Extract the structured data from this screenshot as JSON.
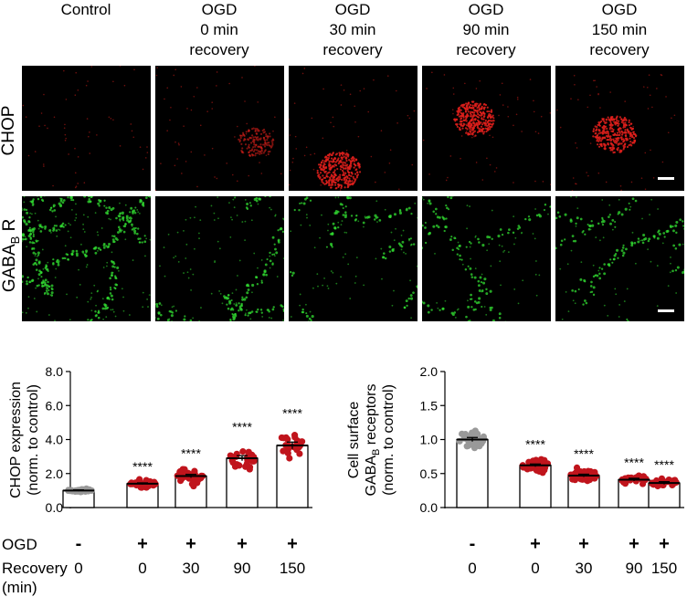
{
  "figure": {
    "column_headers": [
      [
        "Control"
      ],
      [
        "OGD",
        "0 min",
        "recovery"
      ],
      [
        "OGD",
        "30 min",
        "recovery"
      ],
      [
        "OGD",
        "90 min",
        "recovery"
      ],
      [
        "OGD",
        "150 min",
        "recovery"
      ]
    ],
    "row_labels": {
      "chop": "CHOP",
      "gaba_main": "GABA",
      "gaba_sub": "B",
      "gaba_suffix": " R"
    },
    "colors": {
      "chop": "#e0201c",
      "gaba": "#32dc32",
      "panel_bg": "#000000",
      "dot_ogd": "#c0141c",
      "dot_control": "#999999"
    }
  },
  "chart_data": [
    {
      "type": "bar",
      "ylabel_line1": "CHOP expression",
      "ylabel_line2": "(norm. to control)",
      "ylim": [
        0,
        8
      ],
      "yticks": [
        "0.0",
        "2.0",
        "4.0",
        "6.0",
        "8.0"
      ],
      "ogd_label": "OGD",
      "recovery_label": "Recovery",
      "recovery_unit": "(min)",
      "ogd": [
        "-",
        "+",
        "+",
        "+",
        "+"
      ],
      "recovery": [
        "0",
        "0",
        "30",
        "90",
        "150"
      ],
      "values": [
        1.0,
        1.4,
        1.85,
        2.9,
        3.65
      ],
      "sem": [
        0.04,
        0.05,
        0.1,
        0.15,
        0.2
      ],
      "significance": [
        "",
        "****",
        "****",
        "****",
        "****"
      ],
      "n_points": [
        30,
        45,
        38,
        26,
        24
      ],
      "spread": [
        0.12,
        0.3,
        0.6,
        1.0,
        1.05
      ]
    },
    {
      "type": "bar",
      "ylabel_line1": "Cell surface",
      "ylabel_line2_main": "GABA",
      "ylabel_line2_sub": "B",
      "ylabel_line2_suffix": " receptors",
      "ylabel_line3": "(norm. to control)",
      "ylim": [
        0,
        2
      ],
      "yticks": [
        "0.0",
        "0.5",
        "1.0",
        "1.5",
        "2.0"
      ],
      "recovery": [
        "0",
        "0",
        "30",
        "90",
        "150"
      ],
      "ogd": [
        "-",
        "+",
        "+",
        "+",
        "+"
      ],
      "values": [
        1.0,
        0.62,
        0.47,
        0.41,
        0.36
      ],
      "sem": [
        0.03,
        0.02,
        0.02,
        0.02,
        0.02
      ],
      "significance": [
        "",
        "****",
        "****",
        "****",
        "****"
      ],
      "n_points": [
        36,
        40,
        40,
        28,
        26
      ],
      "spread": [
        0.2,
        0.13,
        0.14,
        0.08,
        0.1
      ]
    }
  ]
}
